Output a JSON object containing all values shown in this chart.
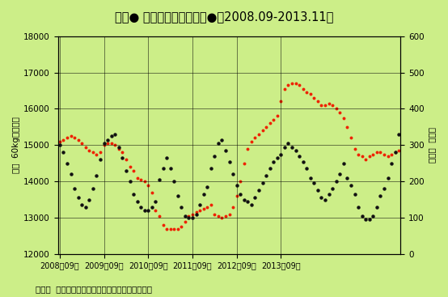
{
  "title": "米価● と出荷段階の在庫量●（2008.09-2013.11）",
  "ylabel_left": "米価  60kg当たり円",
  "ylabel_right": "在庫量  万トン",
  "xlabel_ticks": [
    "2008年09月",
    "2009年09月",
    "2010年09月",
    "2011年09月",
    "2012年09月",
    "2013年09月"
  ],
  "footnote": "資料は  農水省「米に関するマンスリーレポート」",
  "bg_color": "#ccee88",
  "ylim_left": [
    12000,
    18000
  ],
  "ylim_right": [
    0,
    600
  ],
  "grid_color": "#000000",
  "price_color": "#ee2200",
  "inventory_color": "#111111",
  "title_color": "#000000",
  "price_data": [
    15100,
    15150,
    15200,
    15250,
    15200,
    15150,
    15050,
    14950,
    14850,
    14800,
    14750,
    14800,
    15000,
    15050,
    15050,
    15000,
    14900,
    14800,
    14600,
    14400,
    14300,
    14100,
    14050,
    14000,
    13900,
    13700,
    13200,
    13050,
    12800,
    12700,
    12680,
    12680,
    12700,
    12750,
    12900,
    13050,
    13100,
    13150,
    13200,
    13250,
    13300,
    13350,
    13100,
    13050,
    13000,
    13050,
    13100,
    13300,
    13600,
    14000,
    14500,
    14900,
    15100,
    15200,
    15300,
    15400,
    15500,
    15600,
    15700,
    15800,
    16200,
    16550,
    16650,
    16700,
    16700,
    16650,
    16550,
    16450,
    16400,
    16300,
    16200,
    16100,
    16100,
    16150,
    16100,
    16000,
    15900,
    15750,
    15500,
    15200,
    14900,
    14750,
    14700,
    14600,
    14700,
    14750,
    14800,
    14800,
    14750,
    14700,
    14750,
    14800,
    14850
  ],
  "inventory_data": [
    300,
    280,
    250,
    220,
    180,
    155,
    135,
    130,
    150,
    180,
    215,
    260,
    305,
    315,
    325,
    330,
    295,
    265,
    230,
    200,
    165,
    145,
    130,
    120,
    120,
    130,
    145,
    205,
    235,
    265,
    235,
    200,
    160,
    130,
    105,
    100,
    100,
    110,
    135,
    165,
    185,
    235,
    270,
    305,
    315,
    285,
    255,
    220,
    190,
    165,
    150,
    145,
    135,
    155,
    175,
    195,
    215,
    235,
    255,
    265,
    275,
    295,
    305,
    295,
    285,
    270,
    255,
    235,
    210,
    195,
    175,
    155,
    150,
    165,
    180,
    200,
    220,
    250,
    210,
    190,
    165,
    130,
    105,
    95,
    95,
    105,
    130,
    160,
    180,
    210,
    250,
    280,
    330
  ]
}
